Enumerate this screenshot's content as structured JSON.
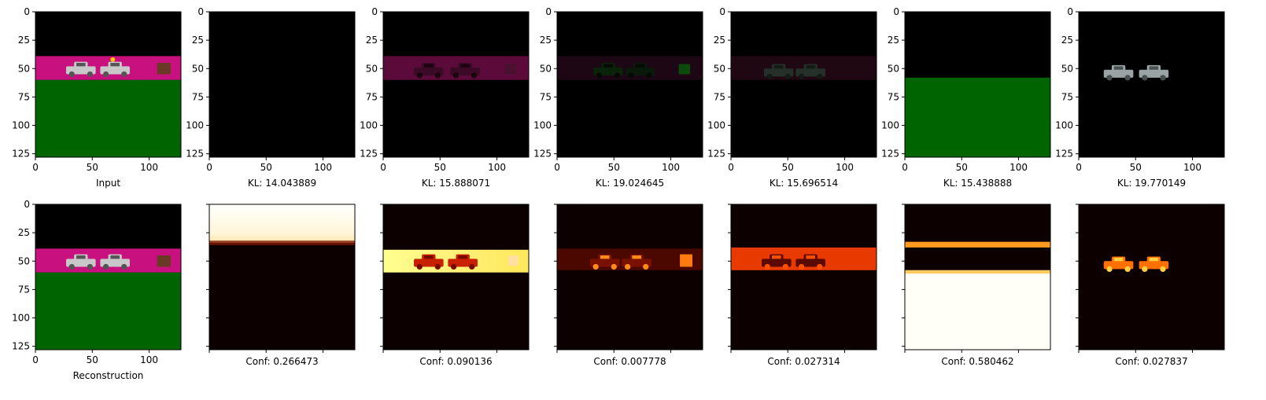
{
  "chart_data": [
    {
      "type": "image",
      "row": 0,
      "col": 0,
      "caption": "Input",
      "content": "input_scene",
      "xlim": [
        0,
        128
      ],
      "ylim": [
        128,
        0
      ],
      "xticks": [
        0,
        50,
        100
      ],
      "yticks": [
        0,
        25,
        50,
        75,
        100,
        125
      ],
      "show_tick_labels": true
    },
    {
      "type": "image",
      "row": 0,
      "col": 1,
      "caption": "KL: 14.043889",
      "kl": 14.043889,
      "content": "black",
      "xlim": [
        0,
        128
      ],
      "ylim": [
        128,
        0
      ],
      "xticks": [
        0,
        50,
        100
      ],
      "yticks": [
        0,
        25,
        50,
        75,
        100,
        125
      ],
      "show_tick_labels": true
    },
    {
      "type": "image",
      "row": 0,
      "col": 2,
      "caption": "KL: 15.888071",
      "kl": 15.888071,
      "content": "slot_magenta_band",
      "xlim": [
        0,
        128
      ],
      "ylim": [
        128,
        0
      ],
      "xticks": [
        0,
        50,
        100
      ],
      "yticks": [
        0,
        25,
        50,
        75,
        100,
        125
      ],
      "show_tick_labels": true
    },
    {
      "type": "image",
      "row": 0,
      "col": 3,
      "caption": "KL: 19.024645",
      "kl": 19.024645,
      "content": "slot_dim_band_green",
      "xlim": [
        0,
        128
      ],
      "ylim": [
        128,
        0
      ],
      "xticks": [
        0,
        50,
        100
      ],
      "yticks": [
        0,
        25,
        50,
        75,
        100,
        125
      ],
      "show_tick_labels": true
    },
    {
      "type": "image",
      "row": 0,
      "col": 4,
      "caption": "KL: 15.696514",
      "kl": 15.696514,
      "content": "slot_dim_band_cars",
      "xlim": [
        0,
        128
      ],
      "ylim": [
        128,
        0
      ],
      "xticks": [
        0,
        50,
        100
      ],
      "yticks": [
        0,
        25,
        50,
        75,
        100,
        125
      ],
      "show_tick_labels": true
    },
    {
      "type": "image",
      "row": 0,
      "col": 5,
      "caption": "KL: 15.438888",
      "kl": 15.438888,
      "content": "slot_green_ground",
      "xlim": [
        0,
        128
      ],
      "ylim": [
        128,
        0
      ],
      "xticks": [
        0,
        50,
        100
      ],
      "yticks": [
        0,
        25,
        50,
        75,
        100,
        125
      ],
      "show_tick_labels": true
    },
    {
      "type": "image",
      "row": 0,
      "col": 6,
      "caption": "KL: 19.770149",
      "kl": 19.770149,
      "content": "slot_car",
      "xlim": [
        0,
        128
      ],
      "ylim": [
        128,
        0
      ],
      "xticks": [
        0,
        50,
        100
      ],
      "yticks": [
        0,
        25,
        50,
        75,
        100,
        125
      ],
      "show_tick_labels": true
    },
    {
      "type": "image",
      "row": 1,
      "col": 0,
      "caption": "Reconstruction",
      "content": "reconstruction_scene",
      "xlim": [
        0,
        128
      ],
      "ylim": [
        128,
        0
      ],
      "xticks": [
        0,
        50,
        100
      ],
      "yticks": [
        0,
        25,
        50,
        75,
        100,
        125
      ],
      "show_tick_labels": true
    },
    {
      "type": "heatmap",
      "row": 1,
      "col": 1,
      "caption": "Conf: 0.266473",
      "conf": 0.266473,
      "content": "mask_top",
      "xticks": [
        0,
        50,
        100
      ],
      "yticks": [
        0,
        25,
        50,
        75,
        100,
        125
      ],
      "show_tick_labels": false
    },
    {
      "type": "heatmap",
      "row": 1,
      "col": 2,
      "caption": "Conf: 0.090136",
      "conf": 0.090136,
      "content": "mask_band_yellow",
      "xticks": [
        0,
        50,
        100
      ],
      "yticks": [
        0,
        25,
        50,
        75,
        100,
        125
      ],
      "show_tick_labels": false
    },
    {
      "type": "heatmap",
      "row": 1,
      "col": 3,
      "caption": "Conf: 0.007778",
      "conf": 0.007778,
      "content": "mask_band_red",
      "xticks": [
        0,
        50,
        100
      ],
      "yticks": [
        0,
        25,
        50,
        75,
        100,
        125
      ],
      "show_tick_labels": false
    },
    {
      "type": "heatmap",
      "row": 1,
      "col": 4,
      "caption": "Conf: 0.027314",
      "conf": 0.027314,
      "content": "mask_band_orange",
      "xticks": [
        0,
        50,
        100
      ],
      "yticks": [
        0,
        25,
        50,
        75,
        100,
        125
      ],
      "show_tick_labels": false
    },
    {
      "type": "heatmap",
      "row": 1,
      "col": 5,
      "caption": "Conf: 0.580462",
      "conf": 0.580462,
      "content": "mask_ground_white",
      "xticks": [
        0,
        50,
        100
      ],
      "yticks": [
        0,
        25,
        50,
        75,
        100,
        125
      ],
      "show_tick_labels": false
    },
    {
      "type": "heatmap",
      "row": 1,
      "col": 6,
      "caption": "Conf: 0.027837",
      "conf": 0.027837,
      "content": "mask_car",
      "xticks": [
        0,
        50,
        100
      ],
      "yticks": [
        0,
        25,
        50,
        75,
        100,
        125
      ],
      "show_tick_labels": false
    }
  ],
  "colors": {
    "sky": "#000000",
    "magenta": "#c8117f",
    "ground": "#006400",
    "car": "#c8c8c8",
    "mask_dark": "#0d0000",
    "mask_white": "#fffff8",
    "mask_yellow": "#ffff7a",
    "mask_red": "#b81800",
    "mask_orange": "#ff6a00"
  }
}
